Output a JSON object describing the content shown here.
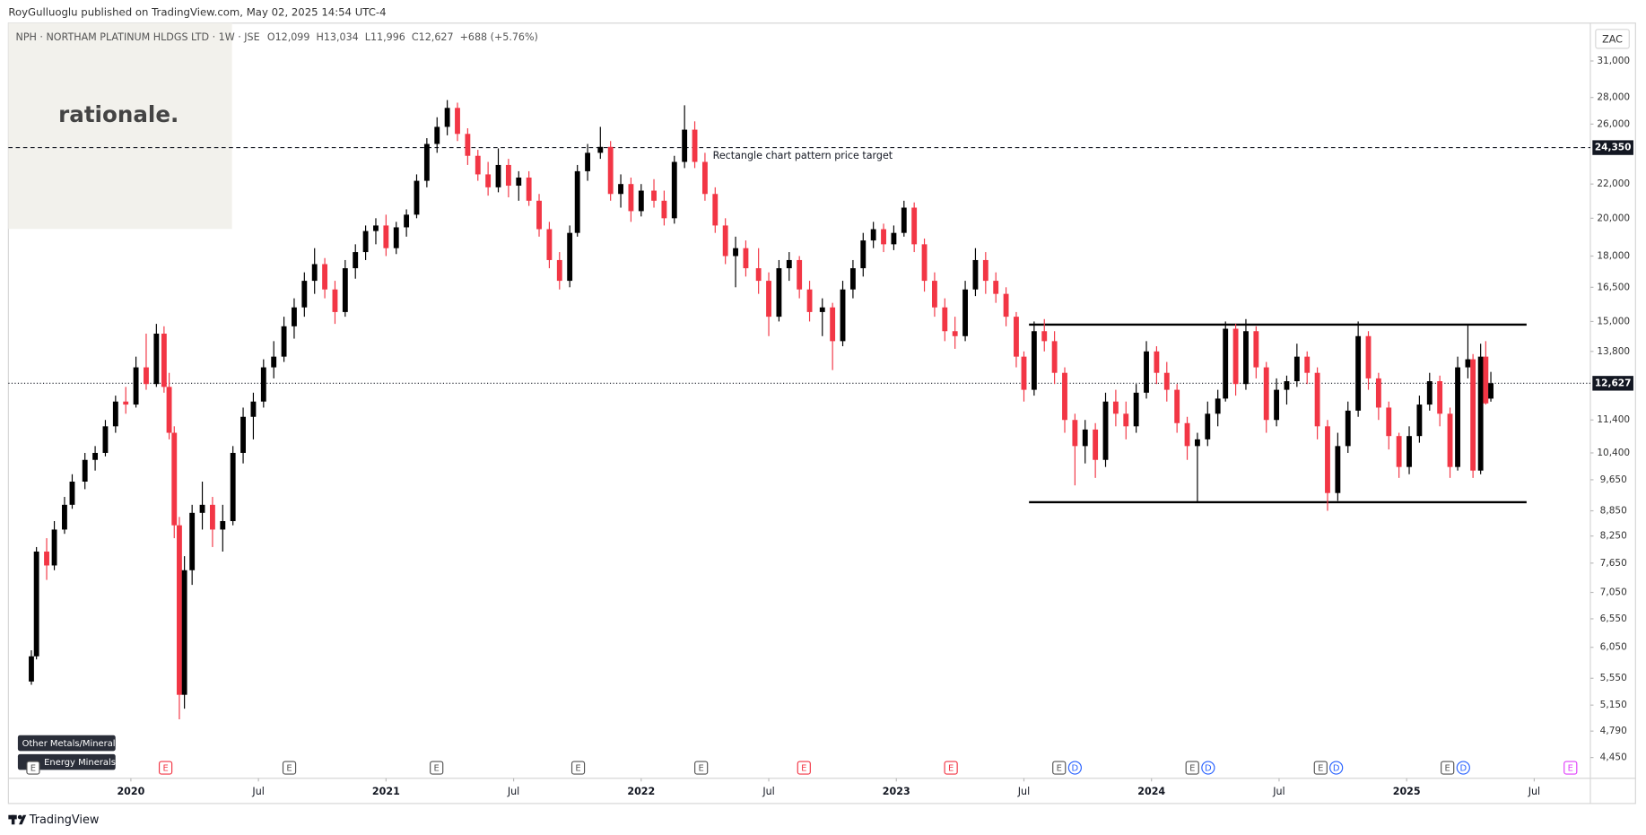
{
  "page": {
    "publisher_line": "RoyGulluoglu published on TradingView.com, May 02, 2025 14:54 UTC-4",
    "watermark": "rationale.",
    "footer": "TradingView"
  },
  "chart_data": {
    "type": "candlestick",
    "title": "NPH · NORTHAM PLATINUM HLDGS LTD · 1W · JSE",
    "ohlc_header": [
      {
        "label": "O",
        "value": "12,099"
      },
      {
        "label": "H",
        "value": "13,034"
      },
      {
        "label": "L",
        "value": "11,996"
      },
      {
        "label": "C",
        "value": "12,627"
      }
    ],
    "change": "+688 (+5.76%)",
    "currency": "ZAC",
    "sector_tags": [
      "Other Metals/Minerals",
      "Energy Minerals"
    ],
    "up_color": "#000000",
    "down_color": "#f23645",
    "log_scale": true,
    "grid": false,
    "xlim": [
      2019.52,
      2025.72
    ],
    "ylim": [
      4200,
      34450
    ],
    "xticks": [
      2020,
      {
        "value": 2020.5,
        "label": "Jul"
      },
      2021,
      {
        "value": 2021.5,
        "label": "Jul"
      },
      2022,
      {
        "value": 2022.5,
        "label": "Jul"
      },
      2023,
      {
        "value": 2023.5,
        "label": "Jul"
      },
      2024,
      {
        "value": 2024.5,
        "label": "Jul"
      },
      2025,
      {
        "value": 2025.5,
        "label": "Jul"
      }
    ],
    "yticks": [
      {
        "value": 31000,
        "label": "31,000"
      },
      {
        "value": 28000,
        "label": "28,000"
      },
      {
        "value": 26000,
        "label": "26,000"
      },
      {
        "value": 22000,
        "label": "22,000"
      },
      {
        "value": 20000,
        "label": "20,000"
      },
      {
        "value": 18000,
        "label": "18,000"
      },
      {
        "value": 16500,
        "label": "16,500"
      },
      {
        "value": 15000,
        "label": "15,000"
      },
      {
        "value": 13800,
        "label": "13,800"
      },
      {
        "value": 11400,
        "label": "11,400"
      },
      {
        "value": 10400,
        "label": "10,400"
      },
      {
        "value": 9650,
        "label": "9,650"
      },
      {
        "value": 8850,
        "label": "8,850"
      },
      {
        "value": 8250,
        "label": "8,250"
      },
      {
        "value": 7650,
        "label": "7,650"
      },
      {
        "value": 7050,
        "label": "7,050"
      },
      {
        "value": 6550,
        "label": "6,550"
      },
      {
        "value": 6050,
        "label": "6,050"
      },
      {
        "value": 5550,
        "label": "5,550"
      },
      {
        "value": 5150,
        "label": "5,150"
      },
      {
        "value": 4790,
        "label": "4,790"
      },
      {
        "value": 4450,
        "label": "4,450"
      }
    ],
    "price_target": {
      "value": 24350,
      "label": "24,350",
      "annotation": "Rectangle chart pattern price target"
    },
    "last_price_label": "12,627",
    "rectangle": {
      "top": 14870,
      "bottom": 9065,
      "x": [
        2023.52,
        2025.47
      ]
    },
    "events": [
      {
        "x": 2019.617,
        "label": "E",
        "color": "#555555"
      },
      {
        "x": 2020.136,
        "label": "E",
        "color": "#f23645"
      },
      {
        "x": 2020.621,
        "label": "E",
        "color": "#555555"
      },
      {
        "x": 2021.198,
        "label": "E",
        "color": "#555555"
      },
      {
        "x": 2021.753,
        "label": "E",
        "color": "#555555"
      },
      {
        "x": 2022.235,
        "label": "E",
        "color": "#555555"
      },
      {
        "x": 2022.638,
        "label": "E",
        "color": "#f23645"
      },
      {
        "x": 2023.214,
        "label": "E",
        "color": "#f23645"
      },
      {
        "x": 2023.638,
        "label": "E",
        "color": "#555555"
      },
      {
        "x": 2023.7,
        "label": "D",
        "color": "#2962ff"
      },
      {
        "x": 2024.16,
        "label": "E",
        "color": "#555555"
      },
      {
        "x": 2024.222,
        "label": "D",
        "color": "#2962ff"
      },
      {
        "x": 2024.663,
        "label": "E",
        "color": "#555555"
      },
      {
        "x": 2024.724,
        "label": "D",
        "color": "#2962ff"
      },
      {
        "x": 2025.16,
        "label": "E",
        "color": "#555555"
      },
      {
        "x": 2025.222,
        "label": "D",
        "color": "#2962ff"
      },
      {
        "x": 2025.642,
        "label": "E",
        "color": "#e040fb"
      }
    ],
    "x": [
      2019.61,
      2019.63,
      2019.67,
      2019.7,
      2019.74,
      2019.77,
      2019.82,
      2019.86,
      2019.9,
      2019.94,
      2019.98,
      2020.02,
      2020.06,
      2020.1,
      2020.13,
      2020.15,
      2020.17,
      2020.19,
      2020.21,
      2020.24,
      2020.28,
      2020.32,
      2020.36,
      2020.4,
      2020.44,
      2020.48,
      2020.52,
      2020.56,
      2020.6,
      2020.64,
      2020.68,
      2020.72,
      2020.76,
      2020.8,
      2020.84,
      2020.88,
      2020.92,
      2020.96,
      2021.0,
      2021.04,
      2021.08,
      2021.12,
      2021.16,
      2021.2,
      2021.24,
      2021.28,
      2021.32,
      2021.36,
      2021.4,
      2021.44,
      2021.48,
      2021.52,
      2021.56,
      2021.6,
      2021.64,
      2021.68,
      2021.72,
      2021.75,
      2021.79,
      2021.84,
      2021.88,
      2021.92,
      2021.96,
      2022.0,
      2022.05,
      2022.09,
      2022.13,
      2022.17,
      2022.21,
      2022.25,
      2022.29,
      2022.33,
      2022.37,
      2022.41,
      2022.46,
      2022.5,
      2022.54,
      2022.58,
      2022.62,
      2022.66,
      2022.71,
      2022.75,
      2022.79,
      2022.83,
      2022.87,
      2022.91,
      2022.95,
      2022.99,
      2023.03,
      2023.07,
      2023.11,
      2023.15,
      2023.19,
      2023.23,
      2023.27,
      2023.31,
      2023.35,
      2023.39,
      2023.43,
      2023.47,
      2023.5,
      2023.54,
      2023.58,
      2023.62,
      2023.66,
      2023.7,
      2023.74,
      2023.78,
      2023.82,
      2023.86,
      2023.9,
      2023.94,
      2023.98,
      2024.02,
      2024.06,
      2024.1,
      2024.14,
      2024.18,
      2024.22,
      2024.26,
      2024.29,
      2024.33,
      2024.37,
      2024.41,
      2024.45,
      2024.49,
      2024.53,
      2024.57,
      2024.61,
      2024.65,
      2024.69,
      2024.73,
      2024.77,
      2024.81,
      2024.85,
      2024.89,
      2024.93,
      2024.97,
      2025.01,
      2025.05,
      2025.09,
      2025.13,
      2025.17,
      2025.2,
      2025.24,
      2025.26,
      2025.29,
      2025.31,
      2025.33
    ],
    "open": [
      5500,
      5900,
      7900,
      7600,
      8400,
      9000,
      9600,
      10200,
      10400,
      11200,
      12000,
      11900,
      13200,
      12600,
      14500,
      12500,
      11000,
      8500,
      5300,
      7500,
      8800,
      9000,
      8400,
      8600,
      10400,
      11500,
      12000,
      13200,
      13600,
      14800,
      15600,
      16800,
      17600,
      16400,
      15400,
      17400,
      18200,
      19300,
      19600,
      18400,
      19500,
      20200,
      22200,
      24600,
      25800,
      27200,
      25300,
      23800,
      22600,
      21800,
      23200,
      21900,
      22400,
      21000,
      19400,
      17800,
      16800,
      19200,
      22800,
      24000,
      24400,
      21400,
      22000,
      20400,
      21600,
      21000,
      20000,
      23400,
      25600,
      23400,
      21400,
      19600,
      18000,
      18400,
      17400,
      16800,
      15200,
      17400,
      17800,
      16400,
      15400,
      15600,
      14200,
      16400,
      17400,
      18800,
      19400,
      18600,
      19200,
      20600,
      18600,
      16800,
      15600,
      14600,
      14400,
      16400,
      17800,
      16800,
      16200,
      15200,
      13600,
      12400,
      14600,
      14200,
      13000,
      11400,
      10600,
      11100,
      10200,
      12000,
      11600,
      11200,
      12300,
      13800,
      13000,
      12400,
      11300,
      10600,
      10800,
      11600,
      12100,
      14700,
      12600,
      14600,
      13200,
      11400,
      12400,
      12700,
      13600,
      13000,
      11200,
      9300,
      10600,
      11700,
      14400,
      12800,
      11800,
      10900,
      10000,
      10900,
      11900,
      12700,
      11600,
      10000,
      13200,
      13500,
      9900,
      13600,
      12099
    ],
    "high": [
      6000,
      8000,
      8200,
      8600,
      9200,
      9800,
      10400,
      10600,
      11400,
      12200,
      12500,
      13600,
      14500,
      14900,
      14800,
      13000,
      11200,
      8700,
      7800,
      9000,
      9600,
      9200,
      9000,
      10600,
      11800,
      12300,
      13500,
      14200,
      15200,
      16000,
      17200,
      18400,
      17900,
      16800,
      17800,
      18600,
      19600,
      20000,
      20200,
      19800,
      20500,
      22600,
      25000,
      26500,
      27800,
      27600,
      25700,
      24200,
      23400,
      24300,
      23600,
      22800,
      22800,
      21400,
      19800,
      18200,
      19600,
      23200,
      24600,
      25800,
      24800,
      22600,
      22400,
      22000,
      22300,
      21600,
      23800,
      27400,
      26200,
      24000,
      21800,
      20000,
      19000,
      18800,
      18400,
      17200,
      17800,
      18200,
      18000,
      16800,
      16000,
      15800,
      16800,
      17800,
      19200,
      19800,
      19700,
      19600,
      21000,
      20900,
      18900,
      17200,
      16000,
      15200,
      16800,
      18400,
      18200,
      17200,
      16500,
      15400,
      13800,
      15000,
      15100,
      14600,
      13200,
      11600,
      11400,
      11300,
      12300,
      12400,
      12000,
      12600,
      14200,
      14000,
      13400,
      12600,
      11500,
      11000,
      12000,
      12400,
      15000,
      14900,
      15100,
      14800,
      13400,
      12800,
      12900,
      14100,
      13800,
      13200,
      11400,
      11000,
      12000,
      15000,
      14600,
      13000,
      12000,
      11000,
      11200,
      12200,
      13000,
      12900,
      11800,
      13600,
      14900,
      13700,
      14100,
      14200,
      13034
    ],
    "low": [
      5450,
      5850,
      7300,
      7500,
      8300,
      8900,
      9400,
      9900,
      10300,
      11000,
      11600,
      11800,
      12400,
      12500,
      12300,
      10800,
      8200,
      4950,
      5100,
      7200,
      8400,
      8000,
      7900,
      8500,
      10100,
      10800,
      11800,
      12800,
      13400,
      14300,
      15200,
      16200,
      16000,
      14900,
      15200,
      16900,
      17800,
      18600,
      18000,
      18100,
      19000,
      20000,
      21800,
      24000,
      25200,
      24800,
      23200,
      22200,
      21300,
      21500,
      21200,
      21000,
      20700,
      19000,
      17400,
      16400,
      16500,
      19000,
      22200,
      23600,
      21000,
      20600,
      19800,
      20100,
      20600,
      19600,
      19700,
      23000,
      23000,
      21000,
      19200,
      17600,
      16500,
      17000,
      16200,
      14400,
      15000,
      16800,
      16000,
      15000,
      14400,
      13100,
      14000,
      16000,
      17000,
      18400,
      18200,
      18300,
      19000,
      18200,
      16300,
      15200,
      14200,
      13900,
      14200,
      16100,
      16200,
      15800,
      14800,
      13200,
      12000,
      12200,
      13800,
      12600,
      11000,
      9500,
      10100,
      9700,
      10000,
      11200,
      10800,
      11000,
      12100,
      12600,
      12000,
      11000,
      10200,
      9050,
      10600,
      11200,
      12000,
      12200,
      12400,
      12800,
      11000,
      11200,
      11900,
      12500,
      12600,
      10800,
      8850,
      9100,
      10400,
      11500,
      12400,
      11400,
      10500,
      9700,
      9800,
      10700,
      11700,
      11200,
      9700,
      9900,
      12800,
      9700,
      9800,
      11900,
      11996
    ],
    "close": [
      5900,
      7900,
      7600,
      8400,
      9000,
      9600,
      10200,
      10400,
      11200,
      12000,
      11900,
      13200,
      12600,
      14500,
      12500,
      11000,
      8500,
      5300,
      7500,
      8800,
      9000,
      8400,
      8600,
      10400,
      11500,
      12000,
      13200,
      13600,
      14800,
      15600,
      16800,
      17600,
      16400,
      15400,
      17400,
      18200,
      19300,
      19600,
      18400,
      19500,
      20200,
      22200,
      24600,
      25800,
      27200,
      25300,
      23800,
      22600,
      21800,
      23200,
      21900,
      22400,
      21000,
      19400,
      17800,
      16800,
      19200,
      22800,
      24000,
      24400,
      21400,
      22000,
      20400,
      21600,
      21000,
      20000,
      23400,
      25600,
      23400,
      21400,
      19600,
      18000,
      18400,
      17400,
      16800,
      15200,
      17400,
      17800,
      16400,
      15400,
      15600,
      14200,
      16400,
      17400,
      18800,
      19400,
      18600,
      19200,
      20600,
      18600,
      16800,
      15600,
      14600,
      14400,
      16400,
      17800,
      16800,
      16200,
      15200,
      13600,
      12400,
      14600,
      14200,
      13000,
      11400,
      10600,
      11100,
      10200,
      12000,
      11600,
      11200,
      12300,
      13800,
      13000,
      12400,
      11300,
      10600,
      10800,
      11600,
      12100,
      14700,
      12600,
      14600,
      13200,
      11400,
      12400,
      12700,
      13600,
      13000,
      11200,
      9300,
      10600,
      11700,
      14400,
      12800,
      11800,
      10900,
      10000,
      10900,
      11900,
      12700,
      11600,
      10000,
      13200,
      13500,
      9900,
      13600,
      11939,
      12627
    ]
  }
}
